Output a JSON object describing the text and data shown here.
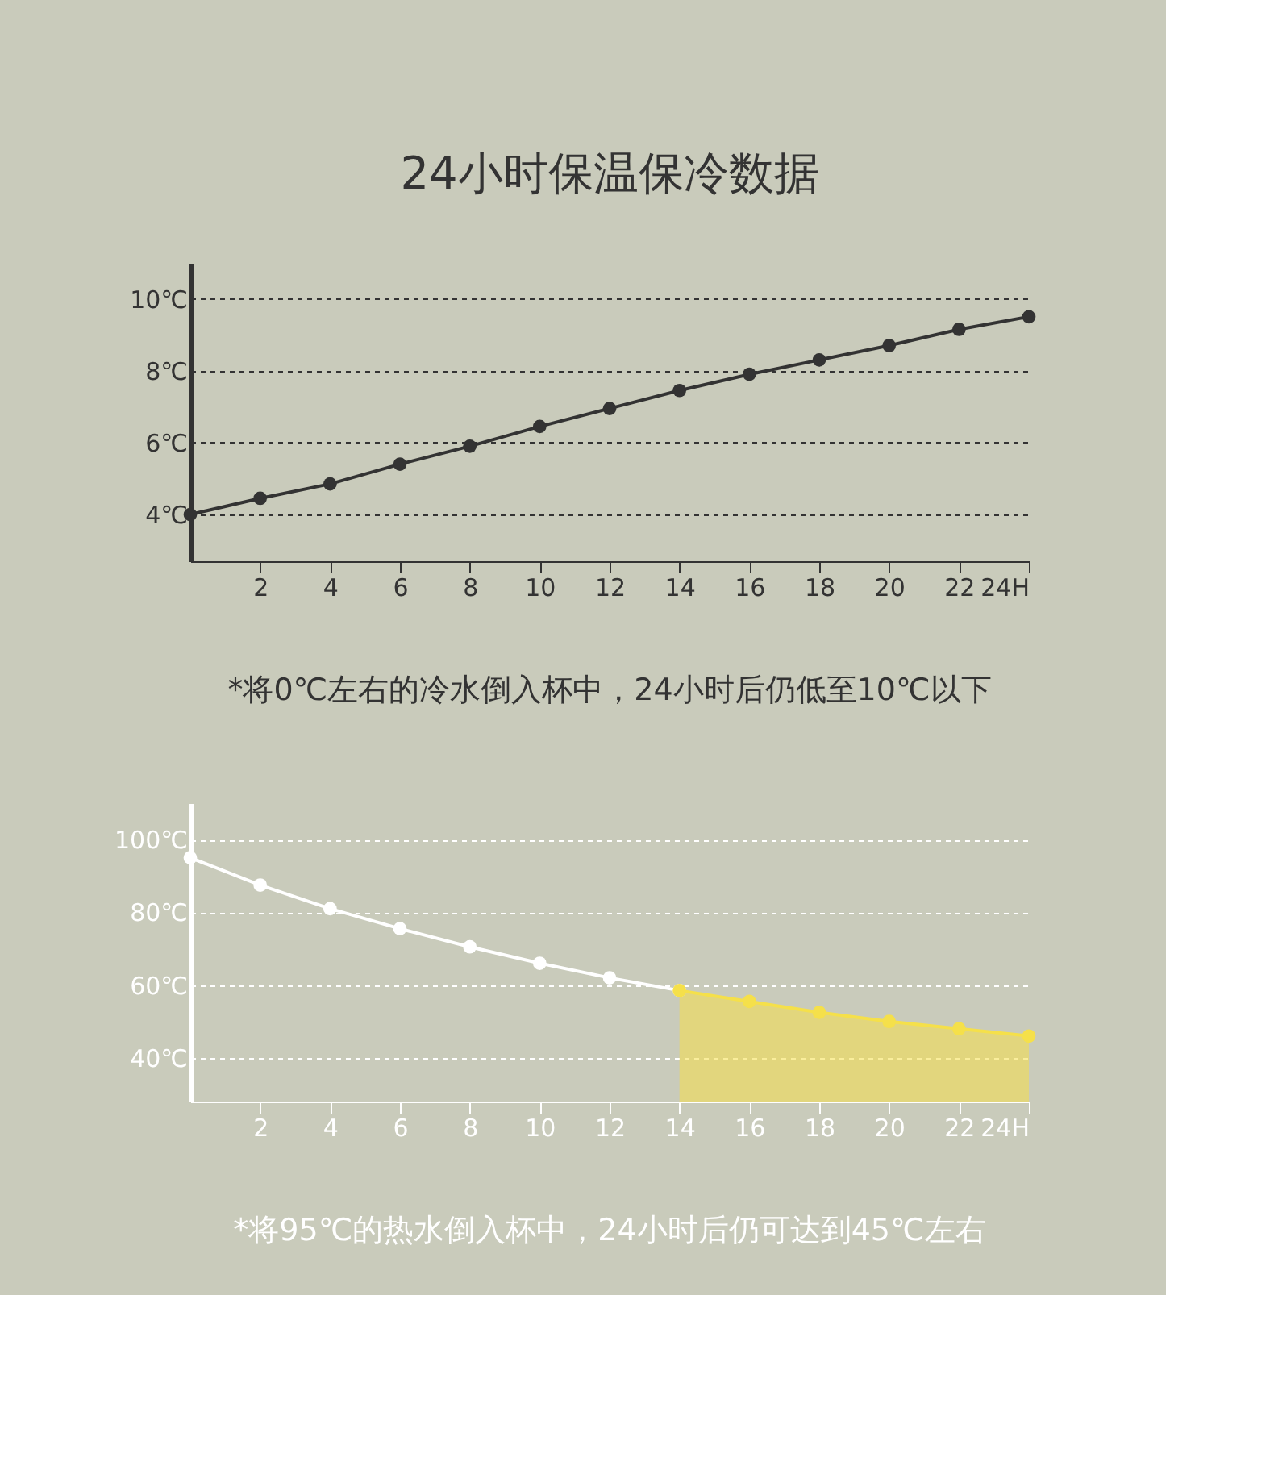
{
  "chart_data": [
    {
      "type": "line",
      "title": "24小时保温保冷数据",
      "annotations": [
        "*将0℃左右的冷水倒入杯中，24小时后仍低至10℃以下"
      ],
      "series": [
        {
          "color": "#333333",
          "x": [
            0,
            2,
            4,
            6,
            8,
            10,
            12,
            14,
            16,
            18,
            20,
            22,
            24
          ],
          "values": [
            4.0,
            4.45,
            4.85,
            5.4,
            5.9,
            6.45,
            6.95,
            7.45,
            7.9,
            8.3,
            8.7,
            9.15,
            9.5
          ]
        }
      ],
      "xlim": [
        0,
        24
      ],
      "xticks": [
        2,
        4,
        6,
        8,
        10,
        12,
        14,
        16,
        18,
        20,
        22,
        {
          "value": 24,
          "label": "24H"
        }
      ],
      "ylim": [
        2.7,
        11
      ],
      "yticks": [
        {
          "value": 4,
          "label": "4℃"
        },
        {
          "value": 6,
          "label": "6℃"
        },
        {
          "value": 8,
          "label": "8℃"
        },
        {
          "value": 10,
          "label": "10℃"
        }
      ],
      "grid": "y",
      "marker": "circle",
      "line_style": "solid"
    },
    {
      "type": "line",
      "annotations": [
        "*将95℃的热水倒入杯中，24小时后仍可达到45℃左右"
      ],
      "series": [
        {
          "color": "#ffffff",
          "x": [
            0,
            2,
            4,
            6,
            8,
            10,
            12,
            14
          ],
          "values": [
            95,
            87.5,
            81,
            75.5,
            70.5,
            66,
            62,
            58.5
          ]
        },
        {
          "type": "area",
          "color": "#f5e04a",
          "x": [
            14,
            16,
            18,
            20,
            22,
            24
          ],
          "values": [
            58.5,
            55.5,
            52.5,
            50,
            48,
            46
          ]
        }
      ],
      "xlim": [
        0,
        24
      ],
      "xticks": [
        2,
        4,
        6,
        8,
        10,
        12,
        14,
        16,
        18,
        20,
        22,
        {
          "value": 24,
          "label": "24H"
        }
      ],
      "ylim": [
        28,
        110
      ],
      "yticks": [
        {
          "value": 40,
          "label": "40℃"
        },
        {
          "value": 60,
          "label": "60℃"
        },
        {
          "value": 80,
          "label": "80℃"
        },
        {
          "value": 100,
          "label": "100℃"
        }
      ],
      "grid": "y",
      "marker": "circle",
      "line_style": "solid"
    }
  ]
}
